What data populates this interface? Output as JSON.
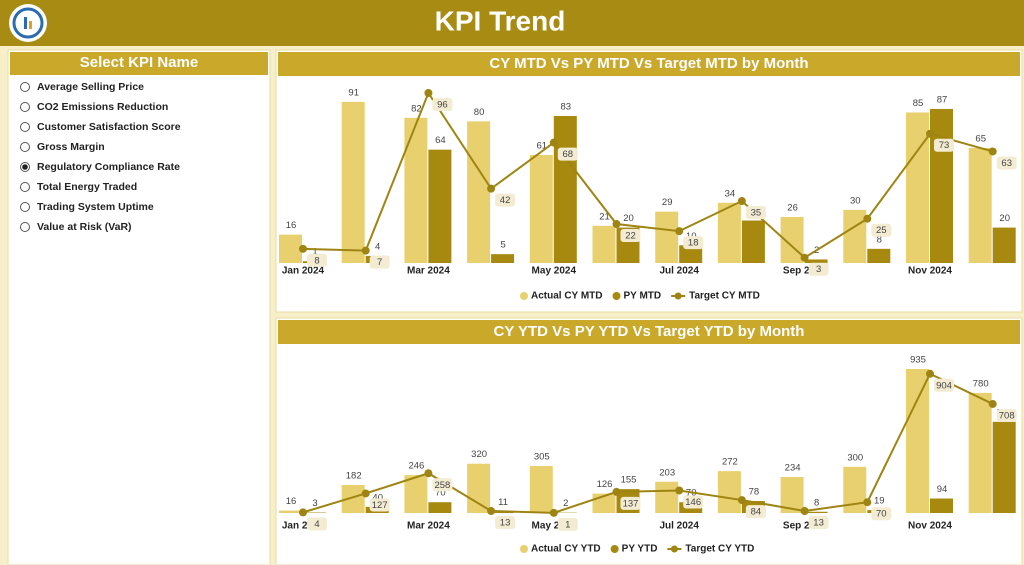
{
  "header": {
    "title": "KPI Trend"
  },
  "slicer": {
    "title": "Select KPI Name",
    "selected": 4,
    "options": [
      "Average Selling Price",
      "CO2 Emissions Reduction",
      "Customer Satisfaction Score",
      "Gross Margin",
      "Regulatory Compliance Rate",
      "Total Energy Traded",
      "Trading System Uptime",
      "Value at Risk (VaR)"
    ]
  },
  "chart_data": [
    {
      "type": "bar-line",
      "title": "CY MTD Vs PY MTD Vs Target MTD by Month",
      "categories": [
        "Jan 2024",
        null,
        "Mar 2024",
        null,
        "May 2024",
        null,
        "Jul 2024",
        null,
        "Sep 2024",
        null,
        "Nov 2024",
        null
      ],
      "series": [
        {
          "name": "Actual CY MTD",
          "kind": "bar",
          "color": "#e9d06f",
          "values": [
            16,
            91,
            82,
            80,
            61,
            21,
            29,
            34,
            26,
            30,
            85,
            65
          ]
        },
        {
          "name": "PY MTD",
          "kind": "bar",
          "color": "#a8890f",
          "values": [
            1,
            4,
            64,
            5,
            83,
            20,
            10,
            24,
            2,
            8,
            87,
            20
          ]
        },
        {
          "name": "Target CY MTD",
          "kind": "line",
          "color": "#9e8412",
          "values": [
            8,
            7,
            96,
            42,
            68,
            22,
            18,
            35,
            3,
            25,
            73,
            63
          ]
        }
      ]
    },
    {
      "type": "bar-line",
      "title": "CY YTD Vs PY YTD Vs Target YTD by Month",
      "categories": [
        "Jan 2024",
        null,
        "Mar 2024",
        null,
        "May 2024",
        null,
        "Jul 2024",
        null,
        "Sep 2024",
        null,
        "Nov 2024",
        null
      ],
      "series": [
        {
          "name": "Actual CY YTD",
          "kind": "bar",
          "color": "#e9d06f",
          "values": [
            16,
            182,
            246,
            320,
            305,
            126,
            203,
            272,
            234,
            300,
            935,
            780
          ]
        },
        {
          "name": "PY YTD",
          "kind": "bar",
          "color": "#a8890f",
          "values": [
            3,
            40,
            70,
            11,
            2,
            155,
            70,
            78,
            8,
            19,
            94,
            592
          ]
        },
        {
          "name": "Target CY YTD",
          "kind": "line",
          "color": "#9e8412",
          "values": [
            4,
            127,
            258,
            13,
            1,
            137,
            146,
            84,
            13,
            70,
            904,
            708
          ]
        }
      ]
    }
  ]
}
